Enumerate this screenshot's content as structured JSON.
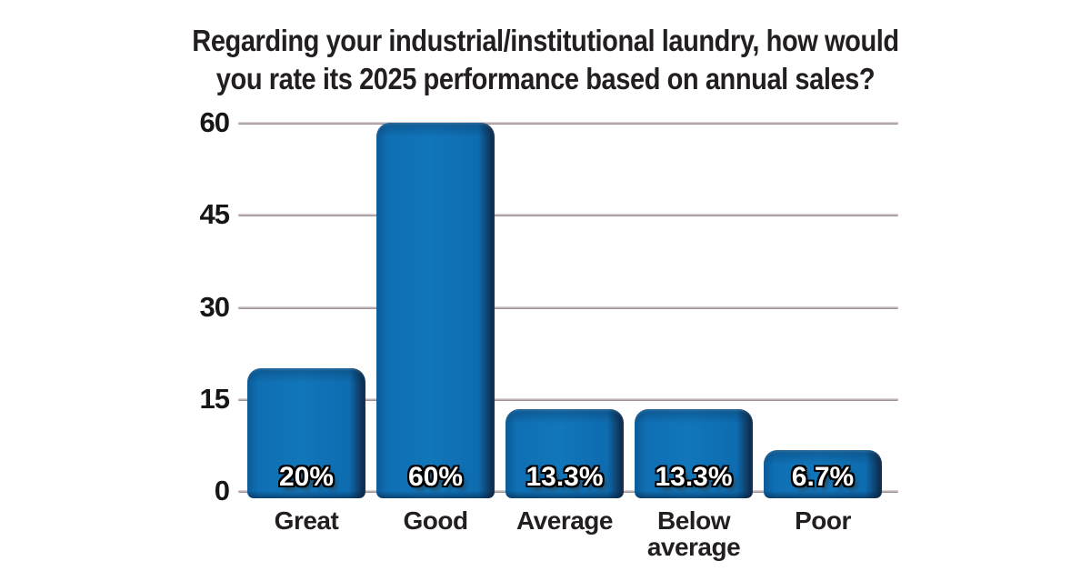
{
  "chart_data": {
    "type": "bar",
    "title": "Regarding your industrial/institutional laundry, how would you rate its 2025 performance based on annual sales?",
    "title_lines": [
      "Regarding your industrial/institutional laundry, how would",
      "you rate its 2025 performance based on annual sales?"
    ],
    "categories": [
      "Great",
      "Good",
      "Average",
      "Below average",
      "Poor"
    ],
    "values": [
      20,
      60,
      13.3,
      13.3,
      6.7
    ],
    "value_labels": [
      "20%",
      "60%",
      "13.3%",
      "13.3%",
      "6.7%"
    ],
    "xlabel": "",
    "ylabel": "",
    "yticks": [
      0,
      15,
      30,
      45,
      60
    ],
    "ylim": [
      0,
      62
    ],
    "grid": "horizontal",
    "legend_position": "none",
    "colors": {
      "bar_main": "#1176ba",
      "bar_edge_left": "#0a5a97",
      "bar_edge_right": "#0d2f52",
      "gridline": "#b2a4a8",
      "title_text": "#231f20",
      "axis_text": "#161616",
      "value_label_text": "#ffffff",
      "value_label_outline": "#000000",
      "background": "#ffffff"
    }
  }
}
